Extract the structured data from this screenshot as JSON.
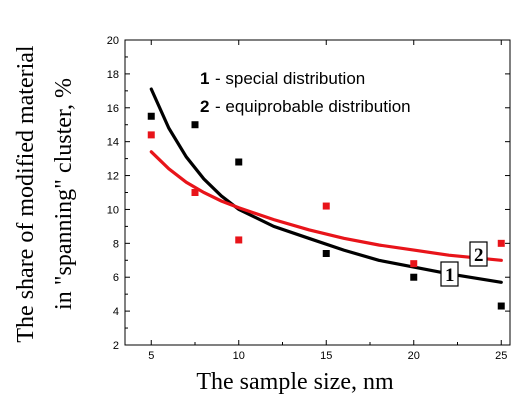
{
  "chart_data": {
    "type": "scatter",
    "xlabel": "The sample size, nm",
    "ylabel_line1": "The share of modified material",
    "ylabel_line2": "in \"spanning\" cluster, %",
    "xlim": [
      3.5,
      25.5
    ],
    "ylim": [
      2,
      20
    ],
    "x_ticks": [
      5,
      10,
      15,
      20,
      25
    ],
    "y_ticks": [
      2,
      4,
      6,
      8,
      10,
      12,
      14,
      16,
      18,
      20
    ],
    "grid": false,
    "legend_position": "top-right",
    "series": [
      {
        "name": "special distribution",
        "legend_number": "1",
        "curve_label": "1",
        "color": "#000000",
        "points": [
          {
            "x": 5,
            "y": 15.5
          },
          {
            "x": 7.5,
            "y": 15.0
          },
          {
            "x": 10,
            "y": 12.8
          },
          {
            "x": 15,
            "y": 7.4
          },
          {
            "x": 20,
            "y": 6.0
          },
          {
            "x": 25,
            "y": 4.3
          }
        ],
        "fit": [
          {
            "x": 5,
            "y": 17.1
          },
          {
            "x": 6,
            "y": 14.8
          },
          {
            "x": 7,
            "y": 13.1
          },
          {
            "x": 8,
            "y": 11.8
          },
          {
            "x": 9,
            "y": 10.8
          },
          {
            "x": 10,
            "y": 10.0
          },
          {
            "x": 12,
            "y": 9.0
          },
          {
            "x": 14,
            "y": 8.3
          },
          {
            "x": 16,
            "y": 7.6
          },
          {
            "x": 18,
            "y": 7.0
          },
          {
            "x": 20,
            "y": 6.6
          },
          {
            "x": 22,
            "y": 6.2
          },
          {
            "x": 25,
            "y": 5.7
          }
        ]
      },
      {
        "name": "equiprobable distribution",
        "legend_number": "2",
        "curve_label": "2",
        "color": "#e8141a",
        "points": [
          {
            "x": 5,
            "y": 14.4
          },
          {
            "x": 7.5,
            "y": 11.0
          },
          {
            "x": 10,
            "y": 8.2
          },
          {
            "x": 15,
            "y": 10.2
          },
          {
            "x": 20,
            "y": 6.8
          },
          {
            "x": 25,
            "y": 8.0
          }
        ],
        "fit": [
          {
            "x": 5,
            "y": 13.4
          },
          {
            "x": 6,
            "y": 12.4
          },
          {
            "x": 7,
            "y": 11.6
          },
          {
            "x": 8,
            "y": 11.0
          },
          {
            "x": 9,
            "y": 10.5
          },
          {
            "x": 10,
            "y": 10.1
          },
          {
            "x": 12,
            "y": 9.4
          },
          {
            "x": 14,
            "y": 8.8
          },
          {
            "x": 16,
            "y": 8.3
          },
          {
            "x": 18,
            "y": 7.9
          },
          {
            "x": 20,
            "y": 7.6
          },
          {
            "x": 22,
            "y": 7.3
          },
          {
            "x": 25,
            "y": 7.0
          }
        ]
      }
    ]
  },
  "legend": {
    "item1_number": "1",
    "item1_text": "- special distribution",
    "item2_number": "2",
    "item2_text": "- equiprobable distribution"
  }
}
